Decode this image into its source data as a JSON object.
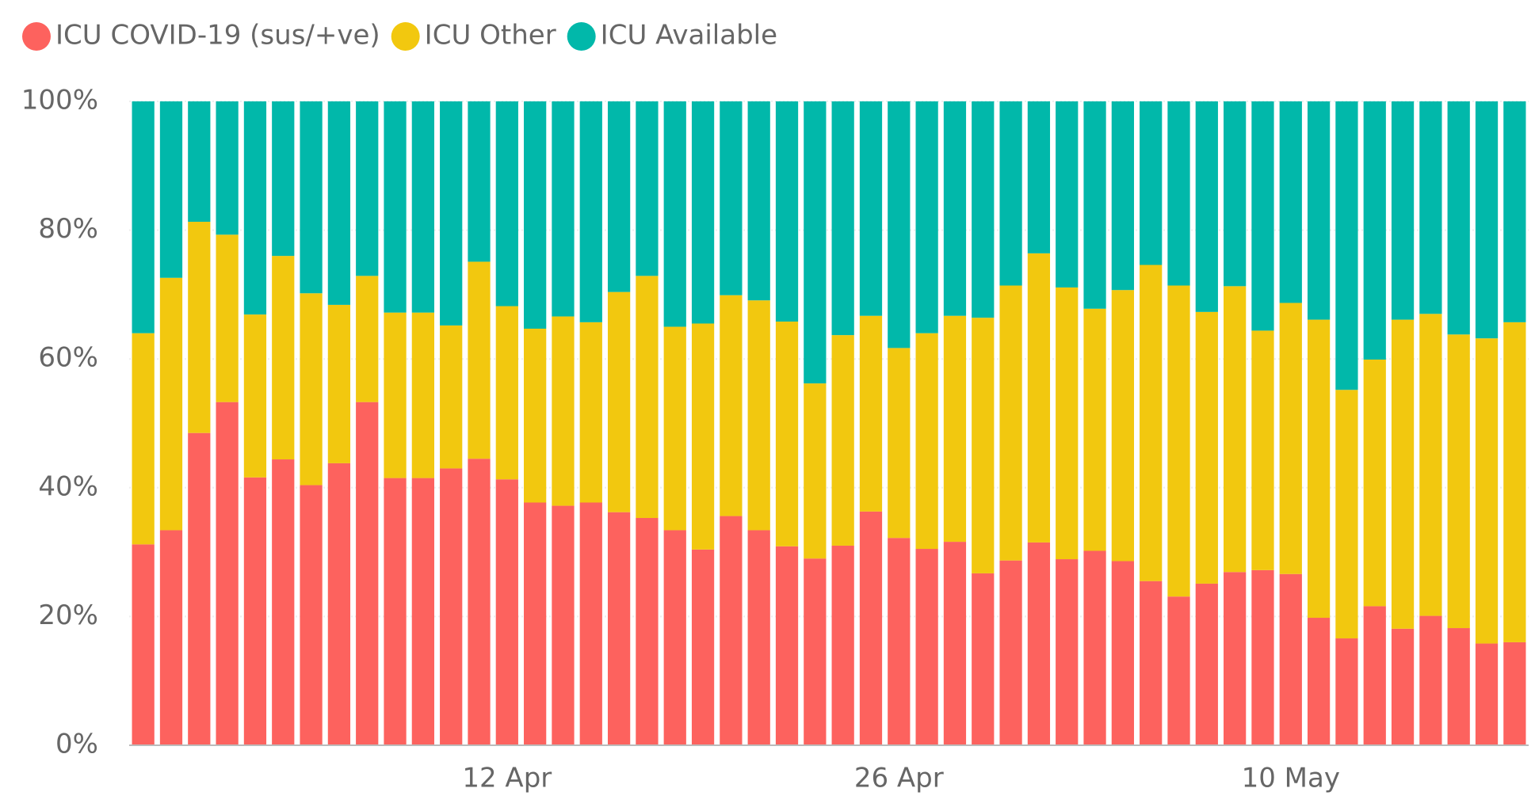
{
  "chart_data": {
    "type": "stacked_bar_percent",
    "categories": [
      null,
      null,
      null,
      null,
      null,
      null,
      null,
      null,
      null,
      null,
      null,
      null,
      null,
      "12 Apr",
      null,
      null,
      null,
      null,
      null,
      null,
      null,
      null,
      null,
      null,
      null,
      null,
      null,
      "26 Apr",
      null,
      null,
      null,
      null,
      null,
      null,
      null,
      null,
      null,
      null,
      null,
      null,
      null,
      "10 May",
      null,
      null,
      null,
      null,
      null,
      null,
      null,
      null
    ],
    "series": [
      {
        "name": "ICU COVID-19 (sus/+ve)",
        "color": "#fd625e",
        "values": [
          31.2,
          33.4,
          48.5,
          53.3,
          41.6,
          44.4,
          40.4,
          43.8,
          53.3,
          41.5,
          41.5,
          43.0,
          44.5,
          41.3,
          37.7,
          37.2,
          37.7,
          36.2,
          35.3,
          33.4,
          30.4,
          35.6,
          33.4,
          30.9,
          29.0,
          31.0,
          36.3,
          32.2,
          30.5,
          31.6,
          26.7,
          28.7,
          31.5,
          28.9,
          30.2,
          28.6,
          25.5,
          23.1,
          25.1,
          26.9,
          27.2,
          26.6,
          19.8,
          16.6,
          21.6,
          18.1,
          20.1,
          18.2,
          15.8,
          16.0
        ]
      },
      {
        "name": "ICU Other",
        "color": "#f2c80f",
        "values": [
          32.8,
          39.2,
          32.8,
          26.0,
          25.3,
          31.6,
          29.8,
          24.6,
          19.6,
          25.7,
          25.7,
          22.2,
          30.6,
          26.9,
          27.0,
          29.4,
          28.0,
          34.2,
          37.6,
          31.6,
          35.1,
          34.3,
          35.7,
          34.9,
          27.2,
          32.7,
          30.4,
          29.5,
          33.5,
          35.1,
          39.7,
          42.7,
          44.9,
          42.2,
          37.6,
          42.1,
          49.1,
          48.3,
          42.2,
          44.4,
          37.2,
          42.1,
          46.3,
          38.6,
          38.3,
          48.0,
          46.9,
          45.6,
          47.4,
          49.7
        ]
      },
      {
        "name": "ICU Available",
        "color": "#01b8aa",
        "values": [
          36.0,
          27.4,
          18.7,
          20.7,
          33.1,
          24.0,
          29.8,
          31.6,
          27.1,
          32.8,
          32.8,
          34.8,
          24.9,
          31.8,
          35.3,
          33.4,
          34.3,
          29.6,
          27.1,
          35.0,
          34.5,
          30.1,
          30.9,
          34.2,
          43.8,
          36.3,
          33.3,
          38.3,
          36.0,
          33.3,
          33.6,
          28.6,
          23.6,
          28.9,
          32.2,
          29.3,
          25.4,
          28.6,
          32.7,
          28.7,
          35.6,
          31.3,
          33.9,
          44.8,
          40.1,
          33.9,
          33.0,
          36.2,
          36.8,
          34.3
        ]
      }
    ],
    "ylim": [
      0,
      100
    ],
    "yticks": [
      {
        "value": 0,
        "label": "0%"
      },
      {
        "value": 20,
        "label": "20%"
      },
      {
        "value": 40,
        "label": "40%"
      },
      {
        "value": 60,
        "label": "60%"
      },
      {
        "value": 80,
        "label": "80%"
      },
      {
        "value": 100,
        "label": "100%"
      }
    ],
    "grid": true,
    "legend": "top-left"
  }
}
